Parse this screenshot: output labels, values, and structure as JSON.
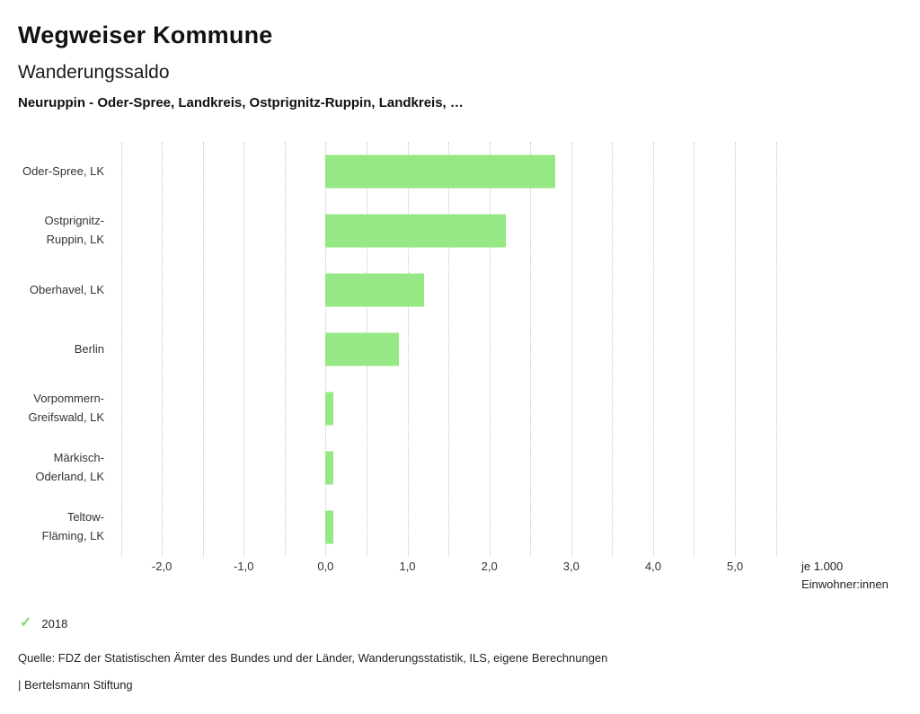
{
  "header": {
    "title": "Wegweiser Kommune",
    "subtitle": "Wanderungssaldo",
    "selection": "Neuruppin - Oder-Spree, Landkreis, Ostprignitz-Ruppin, Landkreis, …"
  },
  "chart_data": {
    "type": "bar",
    "orientation": "horizontal",
    "title": "Wanderungssaldo",
    "categories": [
      "Oder-Spree, LK",
      "Ostprignitz-Ruppin, LK",
      "Oberhavel, LK",
      "Berlin",
      "Vorpommern-Greifswald, LK",
      "Märkisch-Oderland, LK",
      "Teltow-Fläming, LK"
    ],
    "category_lines": [
      [
        "Oder-Spree, LK"
      ],
      [
        "Ostprignitz-",
        "Ruppin, LK"
      ],
      [
        "Oberhavel, LK"
      ],
      [
        "Berlin"
      ],
      [
        "Vorpommern-",
        "Greifswald, LK"
      ],
      [
        "Märkisch-",
        "Oderland, LK"
      ],
      [
        "Teltow-",
        "Fläming, LK"
      ]
    ],
    "series": [
      {
        "name": "2018",
        "values": [
          2.8,
          2.2,
          1.2,
          0.9,
          0.1,
          0.1,
          0.1
        ]
      }
    ],
    "values": [
      2.8,
      2.2,
      1.2,
      0.9,
      0.1,
      0.1,
      0.1
    ],
    "xlim": [
      -2.55,
      5.68
    ],
    "x_ticks": [
      -2,
      -1,
      0,
      1,
      2,
      3,
      4,
      5
    ],
    "x_tick_labels": [
      "-2,0",
      "-1,0",
      "0,0",
      "1,0",
      "2,0",
      "3,0",
      "4,0",
      "5,0"
    ],
    "gridline_start": -2.5,
    "gridline_step": 0.5,
    "gridline_end": 5.5,
    "grid": "on",
    "bar_color": "#96e884",
    "unit_label_line1": "je 1.000",
    "unit_label_line2": "Einwohner:innen",
    "legend_position": "bottom-left"
  },
  "legend": {
    "year": "2018",
    "check_color": "#84da6d"
  },
  "footer": {
    "source": "Quelle: FDZ der Statistischen Ämter des Bundes und der Länder, Wanderungsstatistik, ILS, eigene Berechnungen",
    "branding": "| Bertelsmann Stiftung"
  }
}
